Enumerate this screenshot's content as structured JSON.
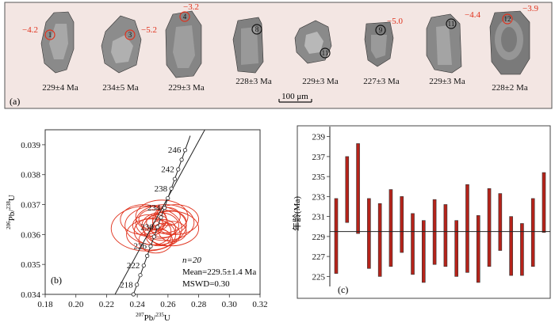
{
  "panel_a": {
    "panel_label": "(a)",
    "scale_bar_label": "100 μm",
    "grains": [
      {
        "spot": "1",
        "ehf": "−4.2",
        "age": "229±4 Ma"
      },
      {
        "spot": "3",
        "ehf": "−5.2",
        "age": "234±5 Ma"
      },
      {
        "spot": "4",
        "ehf": "−3.2",
        "age": "229±3 Ma"
      },
      {
        "spot": "8",
        "ehf": "",
        "age": "228±3 Ma"
      },
      {
        "spot": "11",
        "ehf": "",
        "age": "229±3 Ma"
      },
      {
        "spot": "9",
        "ehf": "−5.0",
        "age": "227±3 Ma"
      },
      {
        "spot": "11",
        "ehf": "−4.4",
        "age": "229±3 Ma"
      },
      {
        "spot": "12",
        "ehf": "−3.9",
        "age": "228±2 Ma"
      }
    ]
  },
  "chart_data": [
    {
      "type": "scatter",
      "panel_label": "(b)",
      "xlabel": "207Pb/235U",
      "ylabel": "206Pb/238U",
      "xlim": [
        0.18,
        0.32
      ],
      "ylim": [
        0.034,
        0.0395
      ],
      "x_ticks": [
        "0.18",
        "0.20",
        "0.22",
        "0.24",
        "0.26",
        "0.28",
        "0.30",
        "0.32"
      ],
      "y_ticks": [
        "0.034",
        "0.035",
        "0.036",
        "0.037",
        "0.038",
        "0.039"
      ],
      "concordia_ages": [
        "218",
        "222",
        "226",
        "230",
        "234",
        "238",
        "242",
        "246"
      ],
      "annotations": [
        "n=20",
        "Mean=229.5±1.4 Ma",
        "MSWD=0.30"
      ],
      "ellipses": [
        {
          "x": 0.246,
          "y": 0.0362,
          "rx": 0.023,
          "ry": 0.00075
        },
        {
          "x": 0.252,
          "y": 0.0363,
          "rx": 0.02,
          "ry": 0.00065
        },
        {
          "x": 0.258,
          "y": 0.0364,
          "rx": 0.019,
          "ry": 0.0006
        },
        {
          "x": 0.262,
          "y": 0.0362,
          "rx": 0.018,
          "ry": 0.00058
        },
        {
          "x": 0.249,
          "y": 0.036,
          "rx": 0.016,
          "ry": 0.00052
        },
        {
          "x": 0.256,
          "y": 0.0366,
          "rx": 0.017,
          "ry": 0.00055
        },
        {
          "x": 0.244,
          "y": 0.0365,
          "rx": 0.015,
          "ry": 0.0005
        },
        {
          "x": 0.265,
          "y": 0.0365,
          "rx": 0.015,
          "ry": 0.0005
        },
        {
          "x": 0.25,
          "y": 0.0361,
          "rx": 0.012,
          "ry": 0.00045
        },
        {
          "x": 0.255,
          "y": 0.0363,
          "rx": 0.012,
          "ry": 0.00043
        },
        {
          "x": 0.261,
          "y": 0.0364,
          "rx": 0.011,
          "ry": 0.0004
        },
        {
          "x": 0.252,
          "y": 0.0358,
          "rx": 0.011,
          "ry": 0.00042
        },
        {
          "x": 0.258,
          "y": 0.036,
          "rx": 0.01,
          "ry": 0.00038
        },
        {
          "x": 0.247,
          "y": 0.0363,
          "rx": 0.01,
          "ry": 0.00036
        },
        {
          "x": 0.263,
          "y": 0.0361,
          "rx": 0.009,
          "ry": 0.00034
        },
        {
          "x": 0.25,
          "y": 0.0365,
          "rx": 0.009,
          "ry": 0.00033
        },
        {
          "x": 0.257,
          "y": 0.0362,
          "rx": 0.008,
          "ry": 0.0003
        },
        {
          "x": 0.254,
          "y": 0.0359,
          "rx": 0.008,
          "ry": 0.00028
        },
        {
          "x": 0.26,
          "y": 0.0366,
          "rx": 0.008,
          "ry": 0.0003
        },
        {
          "x": 0.253,
          "y": 0.0364,
          "rx": 0.007,
          "ry": 0.00026
        }
      ]
    },
    {
      "type": "bar",
      "panel_label": "(c)",
      "ylabel": "年龄(Ma)",
      "ylim": [
        224,
        240
      ],
      "y_ticks": [
        "225",
        "227",
        "229",
        "231",
        "233",
        "235",
        "237",
        "239"
      ],
      "mean_line": 229.5,
      "bars": [
        {
          "low": 225.3,
          "high": 232.8
        },
        {
          "low": 230.4,
          "high": 237.0
        },
        {
          "low": 229.3,
          "high": 238.3
        },
        {
          "low": 225.8,
          "high": 232.8
        },
        {
          "low": 225.0,
          "high": 232.3
        },
        {
          "low": 226.0,
          "high": 233.7
        },
        {
          "low": 227.4,
          "high": 233.0
        },
        {
          "low": 225.2,
          "high": 231.3
        },
        {
          "low": 224.4,
          "high": 230.6
        },
        {
          "low": 226.2,
          "high": 232.7
        },
        {
          "low": 226.0,
          "high": 232.2
        },
        {
          "low": 225.0,
          "high": 230.6
        },
        {
          "low": 225.4,
          "high": 234.2
        },
        {
          "low": 224.4,
          "high": 231.1
        },
        {
          "low": 226.0,
          "high": 233.8
        },
        {
          "low": 227.6,
          "high": 233.3
        },
        {
          "low": 225.1,
          "high": 231.0
        },
        {
          "low": 225.1,
          "high": 230.3
        },
        {
          "low": 226.0,
          "high": 232.8
        },
        {
          "low": 229.4,
          "high": 235.4
        }
      ]
    }
  ],
  "colors": {
    "accent_red": "#e0311c",
    "bar_fill": "#b5231a",
    "panel_a_bg": "#f3e6e3"
  }
}
